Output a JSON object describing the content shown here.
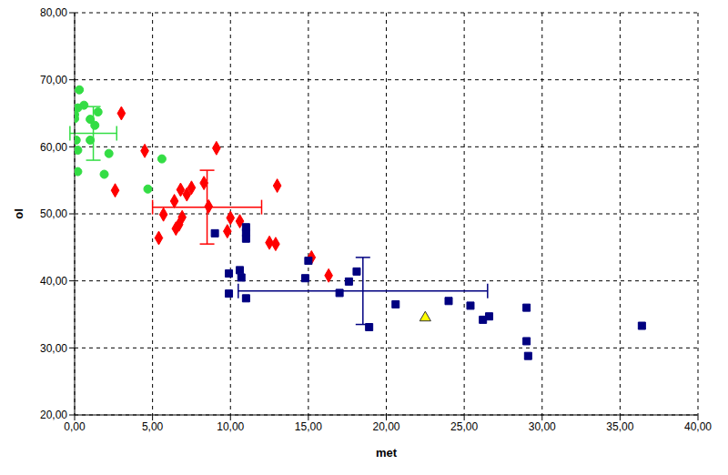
{
  "chart_data": {
    "type": "scatter",
    "x_label": "met",
    "y_label": "ol",
    "grid": true,
    "xlim": [
      0,
      40
    ],
    "xticks": [
      {
        "value": 0,
        "label": "0,00"
      },
      {
        "value": 5,
        "label": "5,00"
      },
      {
        "value": 10,
        "label": "10,00"
      },
      {
        "value": 15,
        "label": "15,00"
      },
      {
        "value": 20,
        "label": "20,00"
      },
      {
        "value": 25,
        "label": "25,00"
      },
      {
        "value": 30,
        "label": "30,00"
      },
      {
        "value": 35,
        "label": "35,00"
      },
      {
        "value": 40,
        "label": "40,00"
      }
    ],
    "ylim": [
      20,
      80
    ],
    "yticks": [
      {
        "value": 20,
        "label": "20,00"
      },
      {
        "value": 30,
        "label": "30,00"
      },
      {
        "value": 40,
        "label": "40,00"
      },
      {
        "value": 50,
        "label": "50,00"
      },
      {
        "value": 60,
        "label": "60,00"
      },
      {
        "value": 70,
        "label": "70,00"
      },
      {
        "value": 80,
        "label": "80,00"
      }
    ],
    "series": [
      {
        "color": "#33dd44",
        "marker": "circle",
        "x": [
          0.3,
          0.6,
          0.2,
          0.0,
          0.0,
          1.0,
          1.5,
          1.3,
          0.1,
          1.0,
          0.2,
          2.2,
          0.2,
          1.9,
          5.6,
          4.7
        ],
        "y": [
          68.5,
          66.2,
          65.8,
          64.8,
          64.2,
          64.1,
          65.2,
          63.2,
          61.0,
          61.0,
          59.5,
          59.0,
          56.3,
          55.9,
          58.2,
          53.7
        ],
        "mean": {
          "x": 1.2,
          "y": 62.0,
          "x_error": 1.5,
          "y_error": 4.0
        }
      },
      {
        "color": "#ff0000",
        "marker": "diamond",
        "x": [
          3.0,
          4.5,
          9.1,
          2.6,
          5.4,
          5.7,
          6.4,
          6.8,
          6.5,
          6.7,
          6.9,
          7.2,
          7.5,
          8.3,
          8.6,
          9.8,
          10.0,
          10.6,
          12.5,
          12.9,
          13.0,
          15.2,
          16.3
        ],
        "y": [
          65.0,
          59.4,
          59.8,
          53.5,
          46.4,
          49.9,
          51.9,
          53.6,
          47.8,
          48.4,
          49.5,
          52.9,
          53.9,
          54.6,
          51.1,
          47.4,
          49.4,
          48.9,
          45.7,
          45.5,
          54.2,
          43.5,
          40.8
        ],
        "mean": {
          "x": 8.5,
          "y": 51.0,
          "x_error": 3.5,
          "y_error": 5.5
        }
      },
      {
        "color": "#000080",
        "marker": "square",
        "x": [
          9.0,
          9.9,
          9.9,
          10.6,
          10.7,
          11.0,
          11.0,
          11.0,
          11.0,
          14.8,
          15.0,
          17.0,
          17.6,
          18.1,
          18.9,
          20.6,
          24.0,
          25.4,
          26.2,
          26.6,
          29.0,
          29.0,
          29.1,
          36.4
        ],
        "y": [
          47.1,
          41.1,
          38.1,
          41.6,
          40.5,
          48.0,
          46.3,
          47.2,
          37.4,
          40.4,
          43.0,
          38.2,
          39.9,
          41.4,
          33.1,
          36.5,
          37.0,
          36.3,
          34.2,
          34.7,
          36.0,
          31.0,
          28.8,
          33.3
        ],
        "mean": {
          "x": 18.5,
          "y": 38.5,
          "x_error": 8.0,
          "y_error": 5.0
        }
      },
      {
        "color": "#ffff00",
        "marker": "triangle",
        "x": [
          22.5
        ],
        "y": [
          34.5
        ]
      }
    ]
  }
}
